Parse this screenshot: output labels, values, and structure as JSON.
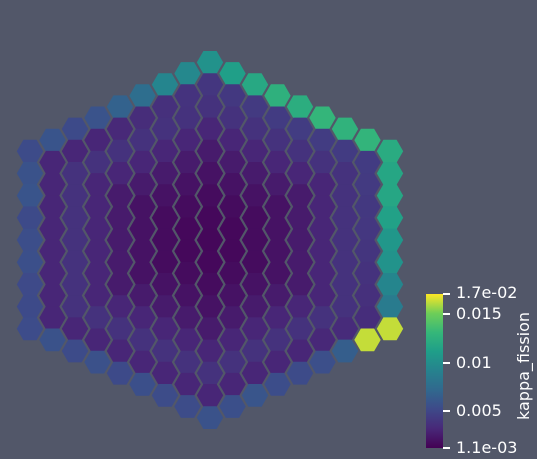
{
  "colorbar": {
    "title": "kappa_fission",
    "range": [
      0.0011,
      0.017
    ],
    "colormap": "viridis",
    "ticks": [
      {
        "label": "1.7e-02",
        "value": 0.017
      },
      {
        "label": "0.015",
        "value": 0.015
      },
      {
        "label": "0.01",
        "value": 0.01
      },
      {
        "label": "0.005",
        "value": 0.005
      },
      {
        "label": "1.1e-03",
        "value": 0.0011
      }
    ]
  },
  "colors": {
    "background": "#525769"
  }
}
